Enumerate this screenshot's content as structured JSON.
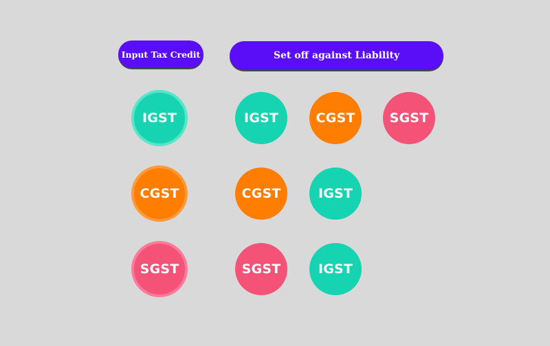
{
  "header": {
    "input_label": "Input Tax Credit",
    "setoff_label": "Set off against Liability"
  },
  "credits": [
    {
      "label": "IGST",
      "color": "#16d4b1"
    },
    {
      "label": "CGST",
      "color": "#ff7d00"
    },
    {
      "label": "SGST",
      "color": "#f55278"
    }
  ],
  "setoff_rows": [
    [
      {
        "label": "IGST"
      },
      {
        "label": "CGST"
      },
      {
        "label": "SGST"
      }
    ],
    [
      {
        "label": "CGST"
      },
      {
        "label": "IGST"
      }
    ],
    [
      {
        "label": "SGST"
      },
      {
        "label": "IGST"
      }
    ]
  ],
  "colors": {
    "background": "#d9d9d9",
    "pill": "#5a0df7",
    "igst": "#16d4b1",
    "cgst": "#ff7d00",
    "sgst": "#f55278"
  }
}
